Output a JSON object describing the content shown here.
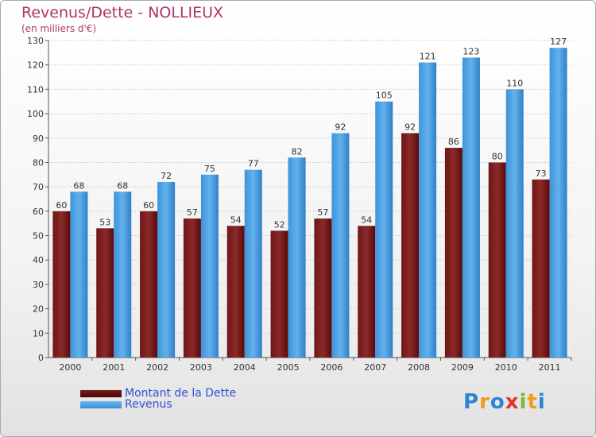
{
  "chart_data": {
    "type": "bar",
    "title": "Revenus/Dette - NOLLIEUX",
    "subtitle": "(en milliers d'€)",
    "categories": [
      "2000",
      "2001",
      "2002",
      "2003",
      "2004",
      "2005",
      "2006",
      "2007",
      "2008",
      "2009",
      "2010",
      "2011"
    ],
    "series": [
      {
        "name": "Montant de la Dette",
        "color": "#7a1a1a",
        "values": [
          60,
          53,
          60,
          57,
          54,
          52,
          57,
          54,
          92,
          86,
          80,
          73
        ]
      },
      {
        "name": "Revenus",
        "color": "#4da3e6",
        "values": [
          68,
          68,
          72,
          75,
          77,
          82,
          92,
          105,
          121,
          123,
          110,
          127
        ]
      }
    ],
    "ylim": [
      0,
      130
    ],
    "yticks": [
      0,
      10,
      20,
      30,
      40,
      50,
      60,
      70,
      80,
      90,
      100,
      110,
      120,
      130
    ],
    "grid": true,
    "legend": "bottom-left"
  },
  "logo": {
    "letters": [
      "P",
      "r",
      "o",
      "x",
      "i",
      "t",
      "i"
    ]
  }
}
